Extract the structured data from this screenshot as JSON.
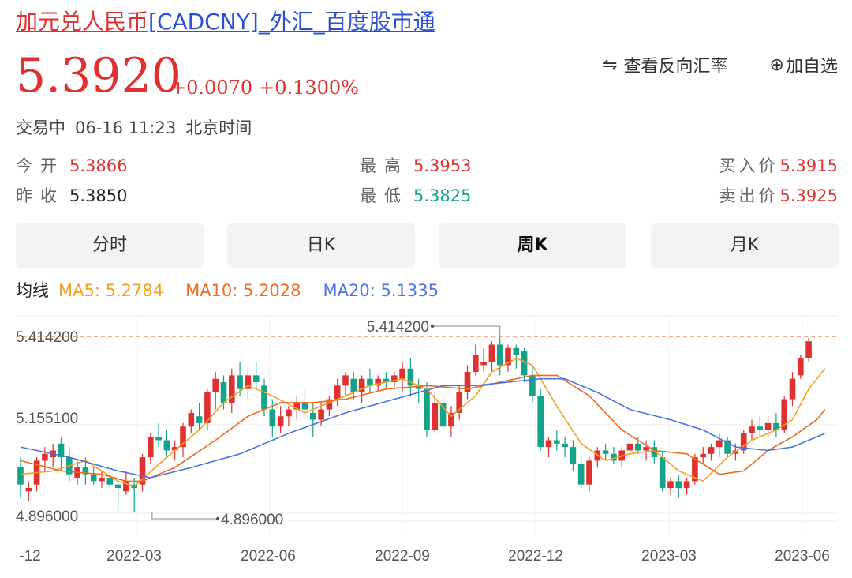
{
  "title": {
    "part1": "加元",
    "part2": "兑人民币",
    "part3": "[CADCNY]_外汇_百度股市通"
  },
  "price": {
    "current": "5.3920",
    "change": "+0.0070",
    "change_pct": "+0.1300%"
  },
  "actions": {
    "reverse_icon": "swap-arrows-icon",
    "reverse_label": "查看反向汇率",
    "watch_icon": "plus-circle-icon",
    "watch_label": "加自选"
  },
  "status": {
    "state": "交易中",
    "time": "06-16 11:23",
    "zone": "北京时间"
  },
  "quote": {
    "open_label": "今开",
    "open": "5.3866",
    "prev_close_label": "昨收",
    "prev_close": "5.3850",
    "high_label": "最高",
    "high": "5.3953",
    "low_label": "最低",
    "low": "5.3825",
    "bid_label": "买入价",
    "bid": "5.3915",
    "ask_label": "卖出价",
    "ask": "5.3925"
  },
  "tabs": [
    {
      "label": "分时",
      "active": false
    },
    {
      "label": "日K",
      "active": false
    },
    {
      "label": "周K",
      "active": true
    },
    {
      "label": "月K",
      "active": false
    }
  ],
  "ma": {
    "label": "均线",
    "ma5": "MA5: 5.2784",
    "ma10": "MA10: 5.2028",
    "ma20": "MA20: 5.1335"
  },
  "colors": {
    "up": "#e03131",
    "down": "#12a388",
    "link_red": "#e03131",
    "link_blue": "#2d4fd6",
    "ma5": "#f4a020",
    "ma10": "#f06b1e",
    "ma20": "#4a73e8",
    "ref_line": "#f07d3a"
  },
  "chart_data": {
    "type": "candlestick",
    "y_ticks": [
      "5.414200",
      "5.155100",
      "4.896000"
    ],
    "ylim": [
      4.8,
      5.5
    ],
    "x_ticks": [
      "-12",
      "2022-03",
      "2022-06",
      "2022-09",
      "2022-12",
      "2023-03",
      "2023-06"
    ],
    "annotations": {
      "max": "5.414200",
      "min": "4.896000"
    },
    "candles": [
      [
        5.03,
        5.06,
        4.94,
        4.98
      ],
      [
        4.96,
        4.99,
        4.93,
        4.97
      ],
      [
        4.98,
        5.06,
        4.96,
        5.05
      ],
      [
        5.05,
        5.09,
        5.02,
        5.07
      ],
      [
        5.06,
        5.1,
        5.03,
        5.08
      ],
      [
        5.1,
        5.12,
        5.02,
        5.06
      ],
      [
        5.06,
        5.09,
        4.99,
        5.01
      ],
      [
        5.0,
        5.05,
        4.98,
        5.03
      ],
      [
        5.03,
        5.06,
        4.98,
        5.01
      ],
      [
        5.01,
        5.03,
        4.98,
        4.99
      ],
      [
        4.99,
        5.02,
        4.97,
        5.0
      ],
      [
        5.0,
        5.02,
        4.97,
        4.98
      ],
      [
        4.98,
        5.0,
        4.91,
        4.97
      ],
      [
        4.96,
        5.02,
        4.95,
        4.99
      ],
      [
        4.98,
        5.0,
        4.9,
        4.97
      ],
      [
        4.98,
        5.07,
        4.96,
        5.06
      ],
      [
        5.06,
        5.13,
        5.04,
        5.12
      ],
      [
        5.12,
        5.16,
        5.09,
        5.11
      ],
      [
        5.11,
        5.14,
        5.06,
        5.08
      ],
      [
        5.08,
        5.11,
        5.05,
        5.09
      ],
      [
        5.09,
        5.16,
        5.06,
        5.15
      ],
      [
        5.15,
        5.2,
        5.13,
        5.19
      ],
      [
        5.18,
        5.22,
        5.14,
        5.16
      ],
      [
        5.16,
        5.26,
        5.14,
        5.25
      ],
      [
        5.25,
        5.31,
        5.2,
        5.29
      ],
      [
        5.28,
        5.3,
        5.2,
        5.22
      ],
      [
        5.22,
        5.32,
        5.19,
        5.3
      ],
      [
        5.3,
        5.34,
        5.24,
        5.26
      ],
      [
        5.26,
        5.32,
        5.23,
        5.3
      ],
      [
        5.3,
        5.34,
        5.26,
        5.28
      ],
      [
        5.27,
        5.29,
        5.18,
        5.2
      ],
      [
        5.2,
        5.23,
        5.12,
        5.15
      ],
      [
        5.15,
        5.21,
        5.13,
        5.18
      ],
      [
        5.18,
        5.21,
        5.15,
        5.2
      ],
      [
        5.2,
        5.24,
        5.17,
        5.22
      ],
      [
        5.22,
        5.26,
        5.18,
        5.2
      ],
      [
        5.19,
        5.22,
        5.12,
        5.17
      ],
      [
        5.17,
        5.22,
        5.15,
        5.2
      ],
      [
        5.2,
        5.24,
        5.18,
        5.23
      ],
      [
        5.23,
        5.29,
        5.21,
        5.27
      ],
      [
        5.27,
        5.31,
        5.24,
        5.3
      ],
      [
        5.29,
        5.31,
        5.23,
        5.25
      ],
      [
        5.25,
        5.3,
        5.22,
        5.29
      ],
      [
        5.29,
        5.32,
        5.25,
        5.27
      ],
      [
        5.27,
        5.3,
        5.25,
        5.29
      ],
      [
        5.29,
        5.31,
        5.26,
        5.28
      ],
      [
        5.28,
        5.31,
        5.26,
        5.3
      ],
      [
        5.29,
        5.34,
        5.25,
        5.32
      ],
      [
        5.32,
        5.35,
        5.24,
        5.27
      ],
      [
        5.27,
        5.29,
        5.22,
        5.26
      ],
      [
        5.26,
        5.28,
        5.12,
        5.14
      ],
      [
        5.14,
        5.25,
        5.13,
        5.22
      ],
      [
        5.22,
        5.24,
        5.14,
        5.15
      ],
      [
        5.15,
        5.21,
        5.12,
        5.19
      ],
      [
        5.19,
        5.27,
        5.17,
        5.25
      ],
      [
        5.25,
        5.33,
        5.23,
        5.31
      ],
      [
        5.31,
        5.39,
        5.3,
        5.36
      ],
      [
        5.33,
        5.38,
        5.31,
        5.34
      ],
      [
        5.34,
        5.4,
        5.31,
        5.39
      ],
      [
        5.39,
        5.41,
        5.3,
        5.33
      ],
      [
        5.33,
        5.39,
        5.31,
        5.38
      ],
      [
        5.38,
        5.39,
        5.32,
        5.36
      ],
      [
        5.37,
        5.38,
        5.28,
        5.3
      ],
      [
        5.3,
        5.33,
        5.22,
        5.24
      ],
      [
        5.24,
        5.26,
        5.08,
        5.09
      ],
      [
        5.09,
        5.12,
        5.06,
        5.11
      ],
      [
        5.11,
        5.14,
        5.08,
        5.1
      ],
      [
        5.1,
        5.12,
        5.06,
        5.09
      ],
      [
        5.09,
        5.11,
        5.02,
        5.04
      ],
      [
        5.04,
        5.06,
        4.97,
        4.98
      ],
      [
        4.98,
        5.06,
        4.96,
        5.05
      ],
      [
        5.05,
        5.09,
        5.03,
        5.08
      ],
      [
        5.08,
        5.1,
        5.05,
        5.07
      ],
      [
        5.07,
        5.09,
        5.04,
        5.05
      ],
      [
        5.05,
        5.09,
        5.03,
        5.08
      ],
      [
        5.08,
        5.11,
        5.06,
        5.1
      ],
      [
        5.1,
        5.12,
        5.07,
        5.08
      ],
      [
        5.08,
        5.11,
        5.05,
        5.09
      ],
      [
        5.09,
        5.11,
        5.04,
        5.06
      ],
      [
        5.06,
        5.08,
        4.96,
        4.97
      ],
      [
        4.97,
        5.0,
        4.95,
        4.99
      ],
      [
        4.99,
        5.01,
        4.94,
        4.97
      ],
      [
        4.97,
        5.0,
        4.95,
        4.99
      ],
      [
        4.99,
        5.07,
        4.98,
        5.06
      ],
      [
        5.06,
        5.09,
        5.04,
        5.07
      ],
      [
        5.07,
        5.1,
        5.05,
        5.09
      ],
      [
        5.09,
        5.13,
        5.06,
        5.11
      ],
      [
        5.11,
        5.12,
        5.06,
        5.07
      ],
      [
        5.07,
        5.1,
        5.05,
        5.08
      ],
      [
        5.08,
        5.14,
        5.07,
        5.13
      ],
      [
        5.13,
        5.17,
        5.11,
        5.15
      ],
      [
        5.15,
        5.18,
        5.12,
        5.14
      ],
      [
        5.14,
        5.18,
        5.12,
        5.16
      ],
      [
        5.16,
        5.19,
        5.12,
        5.14
      ],
      [
        5.14,
        5.24,
        5.13,
        5.23
      ],
      [
        5.23,
        5.31,
        5.21,
        5.29
      ],
      [
        5.3,
        5.36,
        5.29,
        5.35
      ],
      [
        5.35,
        5.41,
        5.34,
        5.4
      ]
    ],
    "ma5": {
      "name": "MA5",
      "points": [
        [
          0,
          5.01
        ],
        [
          4,
          5.02
        ],
        [
          8,
          5.05
        ],
        [
          12,
          4.99
        ],
        [
          14,
          4.975
        ],
        [
          18,
          5.06
        ],
        [
          22,
          5.14
        ],
        [
          25,
          5.22
        ],
        [
          28,
          5.27
        ],
        [
          31,
          5.24
        ],
        [
          35,
          5.19
        ],
        [
          39,
          5.23
        ],
        [
          43,
          5.27
        ],
        [
          47,
          5.29
        ],
        [
          50,
          5.26
        ],
        [
          53,
          5.18
        ],
        [
          56,
          5.24
        ],
        [
          58,
          5.31
        ],
        [
          61,
          5.35
        ],
        [
          63,
          5.33
        ],
        [
          66,
          5.21
        ],
        [
          69,
          5.1
        ],
        [
          72,
          5.05
        ],
        [
          75,
          5.07
        ],
        [
          78,
          5.08
        ],
        [
          81,
          5.02
        ],
        [
          84,
          4.99
        ],
        [
          87,
          5.06
        ],
        [
          90,
          5.11
        ],
        [
          93,
          5.14
        ],
        [
          95,
          5.17
        ],
        [
          97,
          5.26
        ],
        [
          99,
          5.32
        ]
      ]
    },
    "ma10": {
      "name": "MA10",
      "points": [
        [
          0,
          5.05
        ],
        [
          5,
          5.02
        ],
        [
          10,
          5.01
        ],
        [
          13,
          4.99
        ],
        [
          15,
          4.99
        ],
        [
          19,
          5.03
        ],
        [
          24,
          5.11
        ],
        [
          28,
          5.18
        ],
        [
          32,
          5.22
        ],
        [
          36,
          5.22
        ],
        [
          40,
          5.23
        ],
        [
          45,
          5.26
        ],
        [
          50,
          5.27
        ],
        [
          55,
          5.26
        ],
        [
          59,
          5.28
        ],
        [
          63,
          5.3
        ],
        [
          66,
          5.3
        ],
        [
          70,
          5.24
        ],
        [
          74,
          5.14
        ],
        [
          78,
          5.08
        ],
        [
          82,
          5.07
        ],
        [
          86,
          5.01
        ],
        [
          89,
          5.02
        ],
        [
          92,
          5.08
        ],
        [
          95,
          5.12
        ],
        [
          98,
          5.17
        ],
        [
          99,
          5.2
        ]
      ]
    },
    "ma20": {
      "name": "MA20",
      "points": [
        [
          0,
          5.09
        ],
        [
          6,
          5.06
        ],
        [
          12,
          5.02
        ],
        [
          16,
          5.0
        ],
        [
          21,
          5.03
        ],
        [
          27,
          5.07
        ],
        [
          33,
          5.13
        ],
        [
          40,
          5.19
        ],
        [
          46,
          5.23
        ],
        [
          52,
          5.27
        ],
        [
          56,
          5.27
        ],
        [
          60,
          5.28
        ],
        [
          64,
          5.29
        ],
        [
          67,
          5.29
        ],
        [
          71,
          5.25
        ],
        [
          75,
          5.2
        ],
        [
          80,
          5.17
        ],
        [
          84,
          5.14
        ],
        [
          88,
          5.09
        ],
        [
          92,
          5.08
        ],
        [
          95,
          5.09
        ],
        [
          98,
          5.12
        ],
        [
          99,
          5.13
        ]
      ]
    }
  }
}
